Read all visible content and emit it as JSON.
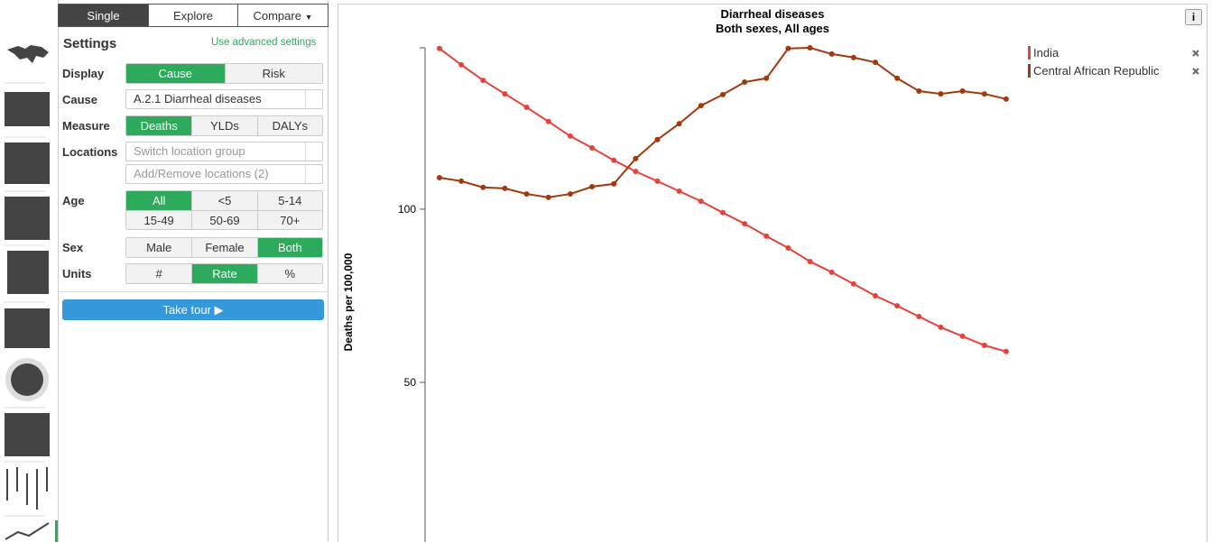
{
  "tabs": [
    "Single",
    "Explore",
    "Compare"
  ],
  "settings": {
    "title": "Settings",
    "advanced": "Use advanced settings",
    "display": {
      "label": "Display",
      "options": [
        "Cause",
        "Risk"
      ]
    },
    "cause": {
      "label": "Cause",
      "value": "A.2.1 Diarrheal diseases"
    },
    "measure": {
      "label": "Measure",
      "options": [
        "Deaths",
        "YLDs",
        "DALYs"
      ]
    },
    "locations": {
      "label": "Locations",
      "group": "Switch location group",
      "add": "Add/Remove locations (2)"
    },
    "age": {
      "label": "Age",
      "options": [
        "All",
        "<5",
        "5-14",
        "15-49",
        "50-69",
        "70+"
      ]
    },
    "sex": {
      "label": "Sex",
      "options": [
        "Male",
        "Female",
        "Both"
      ]
    },
    "units": {
      "label": "Units",
      "options": [
        "#",
        "Rate",
        "%"
      ]
    },
    "tour": "Take tour ▶"
  },
  "info_button": "i",
  "chart_data": {
    "type": "line",
    "title": "Diarrheal diseases",
    "subtitle": "Both sexes, All ages",
    "ylabel": "Deaths per 100,000",
    "ylim": [
      0,
      146.6
    ],
    "yticks": [
      50,
      100
    ],
    "categories": [
      null,
      null,
      null,
      null,
      null,
      null,
      null,
      null,
      null,
      null,
      null,
      null,
      null,
      null,
      null,
      null,
      null,
      null,
      null,
      null,
      null,
      null,
      null,
      null,
      null,
      null,
      null
    ],
    "series": [
      {
        "name": "India",
        "color": "#e8413a",
        "values": [
          146.4,
          141.7,
          137.2,
          133.3,
          129.4,
          125.3,
          121.1,
          117.7,
          114.1,
          110.9,
          108.1,
          105.2,
          102.3,
          99.0,
          95.8,
          92.2,
          88.8,
          84.9,
          81.8,
          78.4,
          75.0,
          72.1,
          69.0,
          65.9,
          63.3,
          60.7,
          58.9
        ]
      },
      {
        "name": "Central African Republic",
        "color": "#a3390b",
        "values": [
          109.1,
          108.1,
          106.3,
          106.0,
          104.4,
          103.4,
          104.4,
          106.5,
          107.3,
          114.6,
          120.1,
          124.7,
          129.9,
          133.1,
          136.7,
          137.8,
          146.4,
          146.6,
          144.8,
          143.8,
          142.4,
          137.8,
          134.1,
          133.3,
          134.1,
          133.3,
          131.8
        ]
      }
    ]
  }
}
